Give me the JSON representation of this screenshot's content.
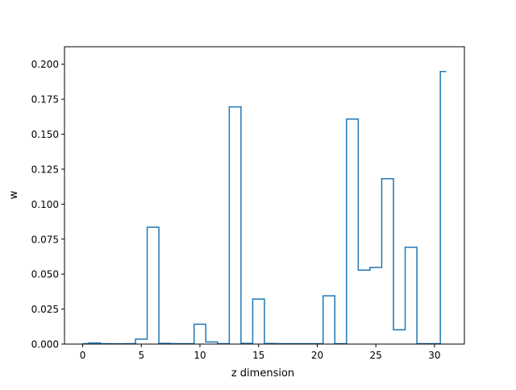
{
  "chart_data": {
    "type": "step",
    "title": "",
    "xlabel": "z dimension",
    "ylabel": "w",
    "xlim": [
      -1.55,
      32.55
    ],
    "ylim": [
      0,
      0.2125
    ],
    "xticks": [
      0,
      5,
      10,
      15,
      20,
      25,
      30
    ],
    "yticks": [
      0.0,
      0.025,
      0.05,
      0.075,
      0.1,
      0.125,
      0.15,
      0.175,
      0.2
    ],
    "xtick_labels": [
      "0",
      "5",
      "10",
      "15",
      "20",
      "25",
      "30"
    ],
    "ytick_labels": [
      "0.000",
      "0.025",
      "0.050",
      "0.075",
      "0.100",
      "0.125",
      "0.150",
      "0.175",
      "0.200"
    ],
    "step_where": "mid",
    "x": [
      0,
      1,
      2,
      3,
      4,
      5,
      6,
      7,
      8,
      9,
      10,
      11,
      12,
      13,
      14,
      15,
      16,
      17,
      18,
      19,
      20,
      21,
      22,
      23,
      24,
      25,
      26,
      27,
      28,
      29,
      30,
      31
    ],
    "values": [
      0.0003,
      0.0008,
      0.0003,
      0.0002,
      0.0003,
      0.0035,
      0.0835,
      0.0005,
      0.0003,
      0.0003,
      0.0142,
      0.0015,
      0.0003,
      0.1695,
      0.0005,
      0.0322,
      0.0004,
      0.0003,
      0.0003,
      0.0003,
      0.0003,
      0.0345,
      0.0003,
      0.1608,
      0.0528,
      0.0548,
      0.1182,
      0.0102,
      0.0692,
      0.0003,
      0.0003,
      0.1948
    ],
    "series_color": "#1f77b4",
    "grid": false,
    "legend": "none"
  }
}
